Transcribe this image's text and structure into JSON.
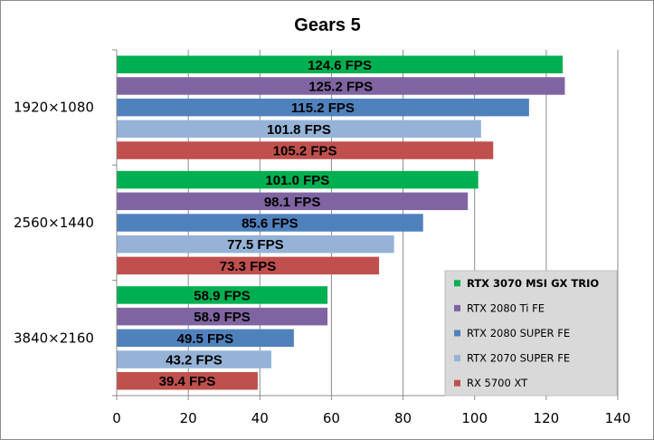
{
  "chart_data": {
    "type": "bar",
    "orientation": "horizontal",
    "title": "Gears 5",
    "xlabel": "",
    "ylabel": "",
    "xlim": [
      0,
      140
    ],
    "xticks": [
      0,
      20,
      40,
      60,
      80,
      100,
      120,
      140
    ],
    "categories": [
      "1920×1080",
      "2560×1440",
      "3840×2160"
    ],
    "value_suffix": " FPS",
    "series": [
      {
        "name": "RTX 3070 MSI GX TRIO",
        "color": "#00b050",
        "bold_legend": true,
        "values": [
          124.6,
          101.0,
          58.9
        ]
      },
      {
        "name": "RTX 2080 Ti FE",
        "color": "#8064a2",
        "values": [
          125.2,
          98.1,
          58.9
        ]
      },
      {
        "name": "RTX 2080 SUPER FE",
        "color": "#4f81bd",
        "values": [
          115.2,
          85.6,
          49.5
        ]
      },
      {
        "name": "RTX 2070 SUPER FE",
        "color": "#95b3d7",
        "values": [
          101.8,
          77.5,
          43.2
        ]
      },
      {
        "name": "RX 5700 XT",
        "color": "#c0504d",
        "values": [
          105.2,
          73.3,
          39.4
        ]
      }
    ],
    "grid": true,
    "legend": "bottom-right"
  }
}
